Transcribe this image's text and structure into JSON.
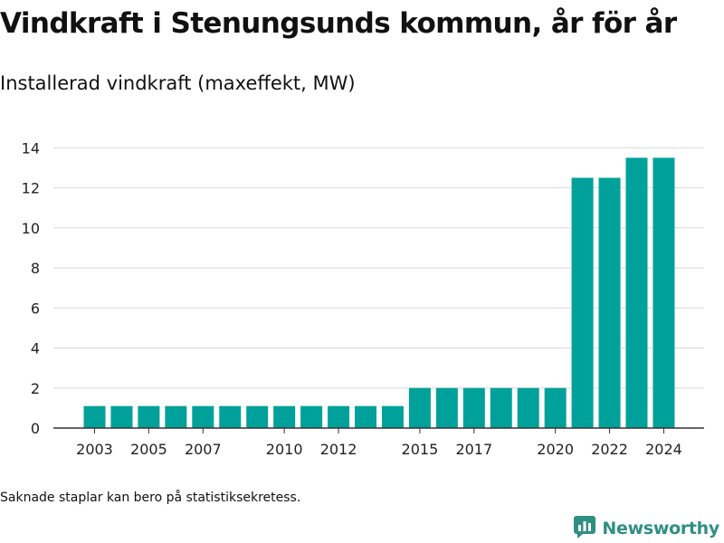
{
  "page": {
    "title": "Vindkraft i Stenungsunds kommun, år för år",
    "subtitle": "Installerad vindkraft (maxeffekt, MW)",
    "note": "Saknade staplar kan bero på statistiksekretess.",
    "brand": "Newsworthy"
  },
  "colors": {
    "bar": "#00a19a",
    "grid": "#d9d9d9",
    "axis": "#333333",
    "brand": "#2f8f82"
  },
  "chart_data": {
    "type": "bar",
    "title": "Vindkraft i Stenungsunds kommun, år för år",
    "subtitle": "Installerad vindkraft (maxeffekt, MW)",
    "xlabel": "",
    "ylabel": "",
    "categories": [
      "2003",
      "2004",
      "2005",
      "2006",
      "2007",
      "2008",
      "2009",
      "2010",
      "2011",
      "2012",
      "2013",
      "2014",
      "2015",
      "2016",
      "2017",
      "2018",
      "2019",
      "2020",
      "2021",
      "2022",
      "2023",
      "2024"
    ],
    "values": [
      1.1,
      1.1,
      1.1,
      1.1,
      1.1,
      1.1,
      1.1,
      1.1,
      1.1,
      1.1,
      1.1,
      1.1,
      2.0,
      2.0,
      2.0,
      2.0,
      2.0,
      2.0,
      12.5,
      12.5,
      13.5,
      13.5
    ],
    "x_tick_labels": [
      "2003",
      "2005",
      "2007",
      "2010",
      "2012",
      "2015",
      "2017",
      "2020",
      "2022",
      "2024"
    ],
    "y_ticks": [
      0,
      2,
      4,
      6,
      8,
      10,
      12,
      14
    ],
    "ylim": [
      0,
      14.6
    ],
    "grid": true,
    "legend": "none"
  }
}
